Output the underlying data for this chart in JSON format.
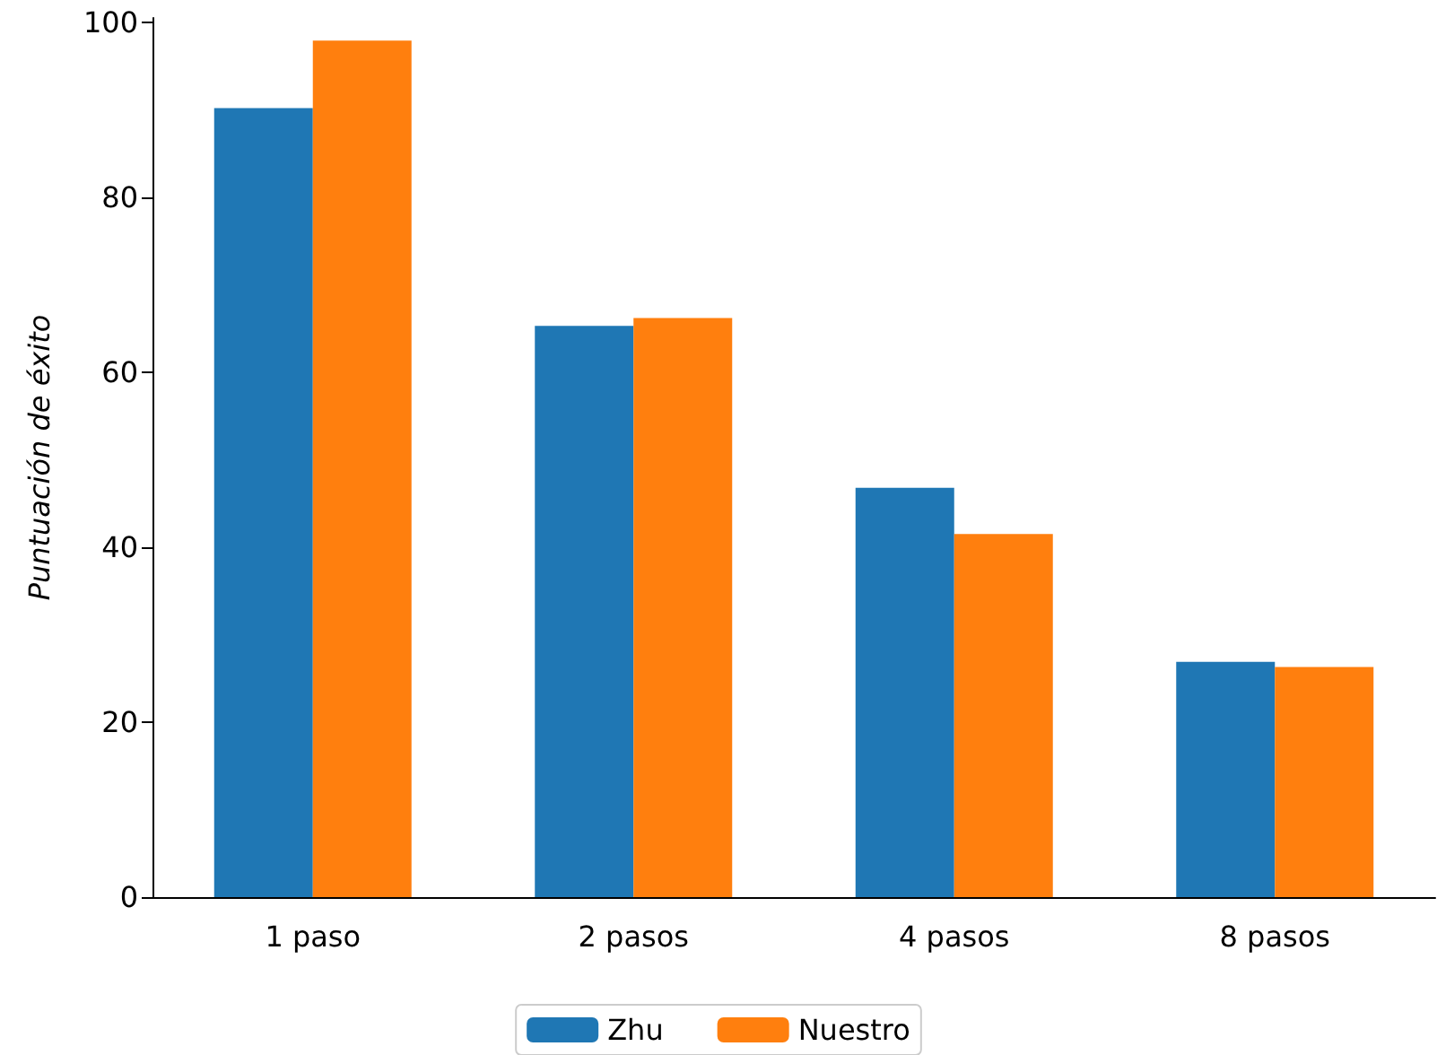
{
  "chart_data": {
    "type": "bar",
    "ylabel": "Puntuación de éxito",
    "categories": [
      "1 paso",
      "2 pasos",
      "4 pasos",
      "8 pasos"
    ],
    "series": [
      {
        "name": "Zhu",
        "color": "#1f77b4",
        "values": [
          90.2,
          65.3,
          46.8,
          26.9
        ]
      },
      {
        "name": "Nuestro",
        "color": "#ff7f0e",
        "values": [
          97.9,
          66.2,
          41.5,
          26.3
        ]
      }
    ],
    "ylim": [
      0,
      100.5
    ],
    "yticks": [
      0,
      20,
      40,
      60,
      80,
      100
    ],
    "grid": false,
    "legend": "bottom"
  }
}
